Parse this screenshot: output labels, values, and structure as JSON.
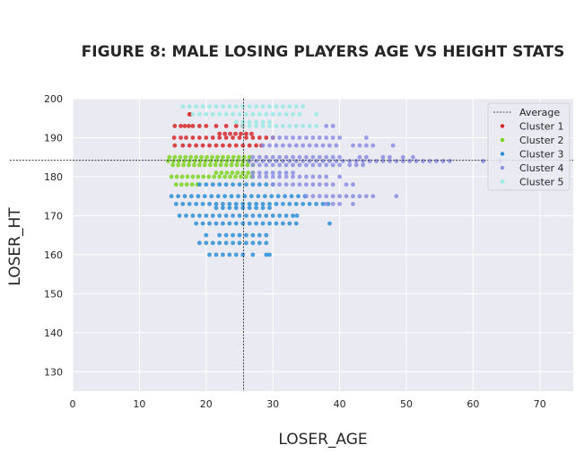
{
  "chart_data": {
    "type": "scatter",
    "title": "FIGURE 8: MALE LOSING PLAYERS AGE VS HEIGHT STATS",
    "xlabel": "LOSER_AGE",
    "ylabel": "LOSER_HT",
    "xlim": [
      0,
      75
    ],
    "ylim": [
      125,
      200
    ],
    "x_ticks": [
      0,
      10,
      20,
      30,
      40,
      50,
      60,
      70
    ],
    "y_ticks": [
      130,
      140,
      150,
      160,
      170,
      180,
      190,
      200
    ],
    "grid": true,
    "legend_position": "top-right",
    "average": {
      "label": "Average",
      "x": 25.6,
      "y": 184.2
    },
    "series": [
      {
        "name": "Cluster 1",
        "color": "#d62728",
        "rows": [
          {
            "y": 196,
            "x": [
              17.5,
              17.6
            ]
          },
          {
            "y": 193,
            "x": [
              15.3,
              16.2,
              16.8,
              17.4,
              18.0,
              19.0,
              20.0,
              21.5,
              23.0,
              24.5,
              25.5
            ]
          },
          {
            "y": 190,
            "x": [
              15.2,
              16.2,
              17.0,
              18.0,
              19.0,
              20.0,
              21.0,
              22.0,
              23.0,
              24.0,
              25.0,
              26.0,
              27.0,
              28.0,
              29.0,
              30.0
            ]
          },
          {
            "y": 191,
            "x": [
              22.0,
              22.8,
              23.6,
              24.4,
              25.2,
              26.0,
              26.8
            ]
          },
          {
            "y": 188,
            "x": [
              15.3,
              16.5,
              17.5,
              18.5,
              19.5,
              20.5,
              21.5,
              22.5,
              23.5,
              24.5,
              25.5,
              26.5,
              27.5,
              28.3
            ]
          }
        ]
      },
      {
        "name": "Cluster 2",
        "color": "#7ed321",
        "rows": [
          {
            "y": 185,
            "x": [
              14.5,
              15.3,
              16.1,
              16.9,
              17.7,
              18.5,
              19.3,
              20.1,
              20.9,
              21.7,
              22.5,
              23.3,
              24.1,
              24.9,
              25.7,
              26.5
            ]
          },
          {
            "y": 184,
            "x": [
              14.3,
              15.1,
              15.9,
              16.7,
              17.5,
              18.3,
              19.1,
              19.9,
              20.7,
              21.5,
              22.3,
              23.1,
              23.9,
              24.7,
              25.5,
              26.3
            ]
          },
          {
            "y": 183,
            "x": [
              15.0,
              15.8,
              16.6,
              17.4,
              18.2,
              19.0,
              19.8,
              20.6,
              21.4,
              22.2,
              23.0,
              23.8,
              24.6,
              25.4,
              26.2,
              27.0
            ]
          },
          {
            "y": 181,
            "x": [
              21.5,
              22.3,
              23.1,
              23.9,
              24.7,
              25.5,
              26.3,
              27.0
            ]
          },
          {
            "y": 180,
            "x": [
              14.8,
              15.6,
              16.4,
              17.2,
              18.0,
              18.8,
              19.6,
              20.4,
              21.2,
              22.0,
              22.8,
              23.6,
              24.4,
              25.2,
              26.0,
              26.8
            ]
          },
          {
            "y": 178,
            "x": [
              15.5,
              16.3,
              17.1,
              17.9,
              18.7
            ]
          }
        ]
      },
      {
        "name": "Cluster 3",
        "color": "#2b8fd6",
        "rows": [
          {
            "y": 178,
            "x": [
              19.0,
              20.0,
              21.0,
              22.0,
              23.0,
              24.0,
              25.0,
              26.0,
              27.0,
              28.0,
              29.0,
              30.0
            ]
          },
          {
            "y": 175,
            "x": [
              14.8,
              15.8,
              16.8,
              17.8,
              18.8,
              19.8,
              20.8,
              21.8,
              22.8,
              23.8,
              24.8,
              25.8,
              26.8,
              27.8,
              28.8,
              29.8,
              30.8,
              31.8,
              32.8,
              33.8,
              34.8
            ]
          },
          {
            "y": 173,
            "x": [
              15.5,
              16.5,
              17.5,
              18.5,
              19.5,
              20.5,
              21.5,
              22.5,
              23.5,
              24.5,
              25.5,
              26.5,
              27.5,
              28.5,
              29.5,
              30.5,
              31.5,
              32.5,
              33.5,
              34.5,
              35.5,
              36.5,
              37.5,
              38.3
            ]
          },
          {
            "y": 172,
            "x": [
              21.5,
              22.5,
              23.5,
              24.5,
              25.5,
              26.5,
              27.5,
              28.5,
              29.5
            ]
          },
          {
            "y": 170,
            "x": [
              16.0,
              17.0,
              18.0,
              19.0,
              20.0,
              21.0,
              22.0,
              23.0,
              24.0,
              25.0,
              26.0,
              27.0,
              28.0,
              29.0,
              30.0,
              31.0,
              32.0,
              33.0,
              33.6
            ]
          },
          {
            "y": 168,
            "x": [
              18.5,
              19.5,
              20.5,
              21.5,
              22.5,
              23.5,
              24.5,
              25.5,
              26.5,
              27.5,
              28.5,
              29.5,
              30.5,
              31.5,
              32.5,
              33.5,
              38.5
            ]
          },
          {
            "y": 165,
            "x": [
              20.0,
              22.0,
              23.0,
              24.0,
              25.0,
              26.0,
              27.0,
              28.0,
              29.0
            ]
          },
          {
            "y": 163,
            "x": [
              19.0,
              20.0,
              21.0,
              22.0,
              23.0,
              24.0,
              25.0,
              26.0,
              27.0,
              28.0,
              29.0
            ]
          },
          {
            "y": 160,
            "x": [
              20.5,
              21.5,
              22.5,
              23.5,
              24.5,
              25.5,
              27.0,
              29.0,
              29.5
            ]
          }
        ]
      },
      {
        "name": "Cluster 4",
        "color": "#8b8ee3",
        "rows": [
          {
            "y": 193,
            "x": [
              38.0,
              39.0
            ]
          },
          {
            "y": 190,
            "x": [
              30.0,
              31.0,
              32.0,
              33.0,
              34.0,
              35.0,
              36.0,
              37.0,
              38.0,
              39.0,
              40.0,
              44.0
            ]
          },
          {
            "y": 188,
            "x": [
              28.5,
              29.5,
              30.5,
              31.5,
              32.5,
              33.5,
              34.5,
              35.5,
              36.5,
              37.5,
              38.5,
              39.5,
              42.0,
              43.0,
              44.0,
              45.0,
              48.0
            ]
          },
          {
            "y": 185,
            "x": [
              27.0,
              28.0,
              29.0,
              30.0,
              31.0,
              32.0,
              33.0,
              34.0,
              35.0,
              36.0,
              37.0,
              38.0,
              39.0,
              40.0,
              43.0,
              44.0,
              46.5,
              47.5,
              49.5,
              51.0
            ]
          },
          {
            "y": 184,
            "x": [
              26.5,
              27.5,
              28.5,
              29.5,
              30.5,
              31.5,
              32.5,
              33.5,
              34.5,
              35.5,
              36.5,
              37.5,
              38.5,
              39.5,
              40.5,
              41.5,
              42.5,
              43.5,
              44.5,
              45.5,
              46.5,
              47.5,
              48.5,
              49.5,
              50.5,
              51.5,
              52.5,
              53.5,
              54.5,
              55.5,
              56.5,
              61.5,
              64.0
            ]
          },
          {
            "y": 183,
            "x": [
              27.0,
              28.0,
              29.0,
              30.0,
              31.0,
              32.0,
              33.0,
              34.0,
              35.0,
              36.0,
              37.0,
              38.0,
              39.0,
              40.0,
              41.5,
              42.5,
              43.5
            ]
          },
          {
            "y": 181,
            "x": [
              27.0,
              28.0,
              29.0,
              30.0,
              31.0,
              32.0,
              33.0
            ]
          },
          {
            "y": 180,
            "x": [
              27.0,
              28.0,
              29.0,
              30.0,
              31.0,
              32.0,
              33.0,
              34.0,
              35.0,
              36.0,
              37.0,
              38.0,
              40.0
            ]
          },
          {
            "y": 178,
            "x": [
              30.0,
              31.0,
              32.0,
              33.0,
              34.0,
              35.0,
              36.0,
              37.0,
              38.0,
              39.0,
              41.0,
              42.0
            ]
          },
          {
            "y": 175,
            "x": [
              35.0,
              36.0,
              37.0,
              38.0,
              39.0,
              40.0,
              41.0,
              42.0,
              43.0,
              44.0,
              45.0,
              48.5
            ]
          },
          {
            "y": 173,
            "x": [
              38.0,
              39.0,
              40.0,
              42.0
            ]
          }
        ]
      },
      {
        "name": "Cluster 5",
        "color": "#9aeae6",
        "rows": [
          {
            "y": 198,
            "x": [
              16.5,
              17.5,
              18.5,
              19.5,
              20.5,
              21.5,
              22.5,
              23.5,
              24.5,
              25.5,
              26.5,
              27.5,
              28.5,
              29.5,
              30.5,
              31.5,
              32.5,
              33.5,
              34.5
            ]
          },
          {
            "y": 196,
            "x": [
              18.0,
              19.0,
              20.0,
              21.0,
              22.0,
              23.0,
              24.0,
              25.0,
              26.0,
              27.0,
              28.0,
              29.0,
              30.0,
              31.0,
              32.0,
              33.0,
              34.0,
              36.5
            ]
          },
          {
            "y": 194,
            "x": [
              24.5,
              25.5,
              26.5,
              27.5,
              28.5,
              29.5
            ]
          },
          {
            "y": 193,
            "x": [
              25.5,
              26.5,
              27.5,
              28.5,
              29.5,
              30.5,
              31.5,
              32.5,
              33.5,
              34.5,
              35.5,
              36.5
            ]
          }
        ]
      }
    ]
  }
}
